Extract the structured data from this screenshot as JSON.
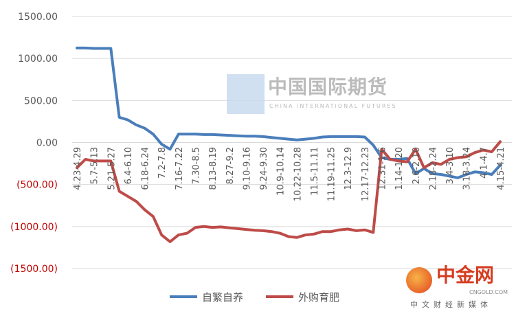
{
  "chart_data": {
    "type": "line",
    "title": "",
    "xlabel": "",
    "ylabel": "",
    "ylim": [
      -1500,
      1500
    ],
    "yticks": [
      1500,
      1000,
      500,
      0,
      -500,
      -1000,
      -1500
    ],
    "ytick_labels": [
      "1500.00",
      "1000.00",
      "500.00",
      "0.00",
      "(500.00)",
      "(1000.00)",
      "(1500.00)"
    ],
    "grid": true,
    "legend_position": "bottom",
    "x_tick_labels": [
      "4.23-4.29",
      "5.7-5.13",
      "5.21-5.27",
      "6.4-6.10",
      "6.18-6.24",
      "7.2-7.8",
      "7.16-7.22",
      "7.30-8.5",
      "8.13-8.19",
      "8.27-9.2",
      "9.10-9.16",
      "9.24-9.30",
      "10.9-10.14",
      "10.22-10.28",
      "11.5-11.11",
      "11.19-11.25",
      "12.3-12.9",
      "12.17-12.23",
      "12.31-1.6",
      "1.14-1.20",
      "2.6-2.10",
      "2.18-2.24",
      "3.4-3.10",
      "3.18-3.24",
      "4.1-4.7",
      "4.15-4.21"
    ],
    "series": [
      {
        "name": "自繁自养",
        "color": "#4a7ebb",
        "values": [
          1125,
          1125,
          1120,
          1120,
          1120,
          300,
          270,
          210,
          170,
          100,
          -20,
          -80,
          100,
          100,
          100,
          95,
          95,
          90,
          85,
          80,
          75,
          75,
          70,
          60,
          50,
          40,
          30,
          40,
          50,
          65,
          70,
          70,
          70,
          70,
          65,
          -30,
          -180,
          -200,
          -200,
          -190,
          -370,
          -310,
          -370,
          -380,
          -400,
          -420,
          -380,
          -350,
          -360,
          -380,
          -270
        ]
      },
      {
        "name": "外购育肥",
        "color": "#be4b48",
        "values": [
          -300,
          -200,
          -220,
          -220,
          -220,
          -580,
          -640,
          -700,
          -800,
          -880,
          -1100,
          -1180,
          -1100,
          -1080,
          -1010,
          -1000,
          -1010,
          -1005,
          -1015,
          -1025,
          -1035,
          -1045,
          -1050,
          -1060,
          -1080,
          -1120,
          -1130,
          -1100,
          -1090,
          -1060,
          -1060,
          -1040,
          -1030,
          -1050,
          -1040,
          -1070,
          -80,
          -200,
          -220,
          -230,
          -80,
          -300,
          -240,
          -260,
          -200,
          -180,
          -170,
          -120,
          -90,
          -110,
          10
        ]
      }
    ]
  },
  "watermark": {
    "text": "中国国际期货",
    "sub": "CHINA INTERNATIONAL FUTURES"
  },
  "brand": {
    "name": "中金网",
    "url": "CNGOLD.COM",
    "slogan": "中文财经新媒体"
  }
}
